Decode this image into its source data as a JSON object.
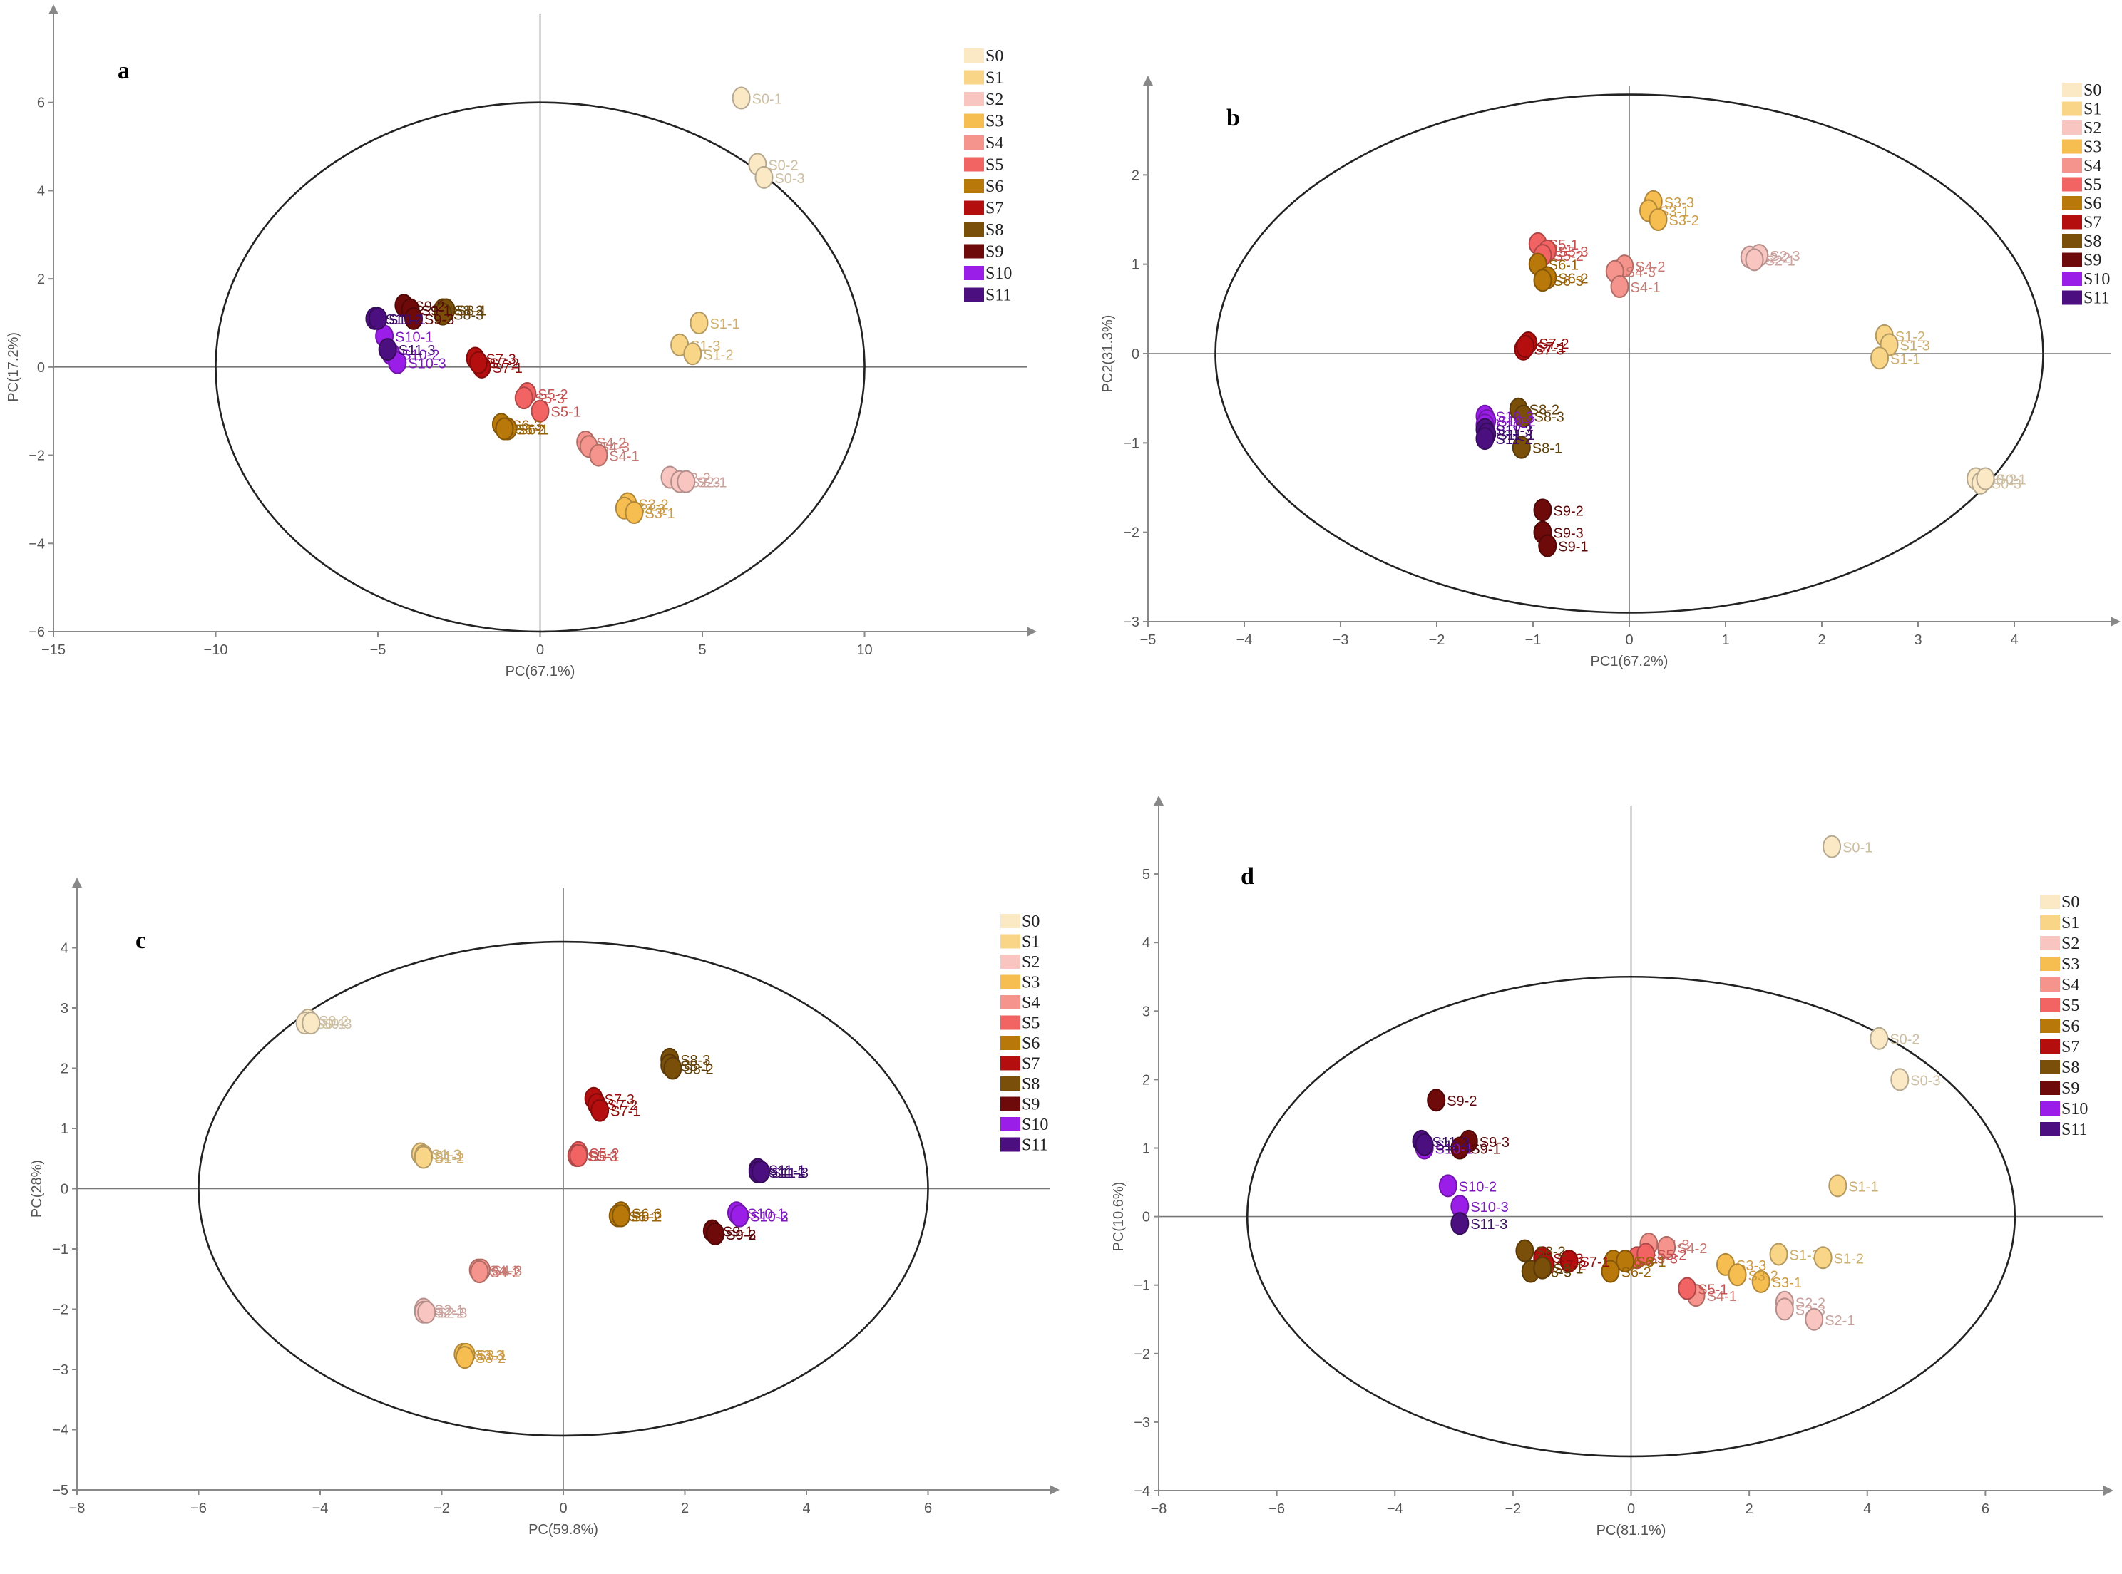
{
  "colors": {
    "S0": "#fbe9c6",
    "S1": "#f9d588",
    "S2": "#f8c5c0",
    "S3": "#f6bd50",
    "S4": "#f4948c",
    "S5": "#f26363",
    "S6": "#b8780a",
    "S7": "#b40e0e",
    "S8": "#7a4f0a",
    "S9": "#6e0a0a",
    "S10": "#9a1ee8",
    "S11": "#4c0f80"
  },
  "legend": [
    "S0",
    "S1",
    "S2",
    "S3",
    "S4",
    "S5",
    "S6",
    "S7",
    "S8",
    "S9",
    "S10",
    "S11"
  ],
  "chart_data": [
    {
      "type": "scatter",
      "panel": "a",
      "xlabel": "PC(67.1%)",
      "ylabel": "PC(17.2%)",
      "xlim": [
        -15,
        15
      ],
      "ylim": [
        -6,
        8
      ],
      "xticks": [
        -15,
        -10,
        -5,
        0,
        5,
        10
      ],
      "yticks": [
        -6,
        -4,
        -2,
        0,
        2,
        4,
        6
      ],
      "ellipse": {
        "cx": 0,
        "cy": 0,
        "rx": 10,
        "ry": 6
      },
      "points": [
        {
          "g": "S0",
          "label": "S0-1",
          "x": 6.2,
          "y": 6.1
        },
        {
          "g": "S0",
          "label": "S0-2",
          "x": 6.7,
          "y": 4.6
        },
        {
          "g": "S0",
          "label": "S0-3",
          "x": 6.9,
          "y": 4.3
        },
        {
          "g": "S1",
          "label": "S1-1",
          "x": 4.9,
          "y": 1.0
        },
        {
          "g": "S1",
          "label": "S1-3",
          "x": 4.3,
          "y": 0.5
        },
        {
          "g": "S1",
          "label": "S1-2",
          "x": 4.7,
          "y": 0.3
        },
        {
          "g": "S2",
          "label": "S2-2",
          "x": 4.0,
          "y": -2.5
        },
        {
          "g": "S2",
          "label": "S2-3",
          "x": 4.3,
          "y": -2.6
        },
        {
          "g": "S2",
          "label": "S2-1",
          "x": 4.5,
          "y": -2.6
        },
        {
          "g": "S3",
          "label": "S3-2",
          "x": 2.7,
          "y": -3.1
        },
        {
          "g": "S3",
          "label": "S3-3",
          "x": 2.6,
          "y": -3.2
        },
        {
          "g": "S3",
          "label": "S3-1",
          "x": 2.9,
          "y": -3.3
        },
        {
          "g": "S4",
          "label": "S4-2",
          "x": 1.4,
          "y": -1.7
        },
        {
          "g": "S4",
          "label": "S4-3",
          "x": 1.5,
          "y": -1.8
        },
        {
          "g": "S4",
          "label": "S4-1",
          "x": 1.8,
          "y": -2.0
        },
        {
          "g": "S5",
          "label": "S5-2",
          "x": -0.4,
          "y": -0.6
        },
        {
          "g": "S5",
          "label": "S5-3",
          "x": -0.5,
          "y": -0.7
        },
        {
          "g": "S5",
          "label": "S5-1",
          "x": 0.0,
          "y": -1.0
        },
        {
          "g": "S6",
          "label": "S6-3",
          "x": -1.2,
          "y": -1.3
        },
        {
          "g": "S6",
          "label": "S6-1",
          "x": -1.0,
          "y": -1.4
        },
        {
          "g": "S6",
          "label": "S6-2",
          "x": -1.1,
          "y": -1.4
        },
        {
          "g": "S7",
          "label": "S7-3",
          "x": -2.0,
          "y": 0.2
        },
        {
          "g": "S7",
          "label": "S7-1",
          "x": -1.8,
          "y": 0.0
        },
        {
          "g": "S7",
          "label": "S7-2",
          "x": -1.9,
          "y": 0.1
        },
        {
          "g": "S8",
          "label": "S8-2",
          "x": -3.0,
          "y": 1.3
        },
        {
          "g": "S8",
          "label": "S8-1",
          "x": -2.9,
          "y": 1.3
        },
        {
          "g": "S8",
          "label": "S8-3",
          "x": -3.0,
          "y": 1.2
        },
        {
          "g": "S9",
          "label": "S9-2",
          "x": -4.2,
          "y": 1.4
        },
        {
          "g": "S9",
          "label": "S9-1",
          "x": -4.0,
          "y": 1.3
        },
        {
          "g": "S9",
          "label": "S9-3",
          "x": -3.9,
          "y": 1.1
        },
        {
          "g": "S10",
          "label": "S10-1",
          "x": -4.8,
          "y": 0.7
        },
        {
          "g": "S10",
          "label": "S10-2",
          "x": -4.6,
          "y": 0.3
        },
        {
          "g": "S10",
          "label": "S10-3",
          "x": -4.4,
          "y": 0.1
        },
        {
          "g": "S11",
          "label": "S11-2",
          "x": -5.1,
          "y": 1.1
        },
        {
          "g": "S11",
          "label": "S11-1",
          "x": -5.0,
          "y": 1.1
        },
        {
          "g": "S11",
          "label": "S11-3",
          "x": -4.7,
          "y": 0.4
        }
      ]
    },
    {
      "type": "scatter",
      "panel": "b",
      "xlabel": "PC1(67.2%)",
      "ylabel": "PC2(31.3%)",
      "xlim": [
        -5,
        5
      ],
      "ylim": [
        -3,
        3
      ],
      "xticks": [
        -5,
        -4,
        -3,
        -2,
        -1,
        0,
        1,
        2,
        3,
        4
      ],
      "yticks": [
        -3,
        -2,
        -1,
        0,
        1,
        2
      ],
      "ellipse": {
        "cx": 0,
        "cy": 0,
        "rx": 4.3,
        "ry": 2.9
      },
      "points": [
        {
          "g": "S0",
          "label": "S0-2",
          "x": 3.6,
          "y": -1.4
        },
        {
          "g": "S0",
          "label": "S0-3",
          "x": 3.65,
          "y": -1.45
        },
        {
          "g": "S0",
          "label": "S0-1",
          "x": 3.7,
          "y": -1.4
        },
        {
          "g": "S1",
          "label": "S1-2",
          "x": 2.65,
          "y": 0.2
        },
        {
          "g": "S1",
          "label": "S1-3",
          "x": 2.7,
          "y": 0.1
        },
        {
          "g": "S1",
          "label": "S1-1",
          "x": 2.6,
          "y": -0.05
        },
        {
          "g": "S2",
          "label": "S2-2",
          "x": 1.25,
          "y": 1.08
        },
        {
          "g": "S2",
          "label": "S2-3",
          "x": 1.35,
          "y": 1.1
        },
        {
          "g": "S2",
          "label": "S2-1",
          "x": 1.3,
          "y": 1.05
        },
        {
          "g": "S3",
          "label": "S3-3",
          "x": 0.25,
          "y": 1.7
        },
        {
          "g": "S3",
          "label": "S3-1",
          "x": 0.2,
          "y": 1.6
        },
        {
          "g": "S3",
          "label": "S3-2",
          "x": 0.3,
          "y": 1.5
        },
        {
          "g": "S4",
          "label": "S4-2",
          "x": -0.05,
          "y": 0.98
        },
        {
          "g": "S4",
          "label": "S4-3",
          "x": -0.15,
          "y": 0.92
        },
        {
          "g": "S4",
          "label": "S4-1",
          "x": -0.1,
          "y": 0.75
        },
        {
          "g": "S5",
          "label": "S5-1",
          "x": -0.95,
          "y": 1.23
        },
        {
          "g": "S5",
          "label": "S5-3",
          "x": -0.85,
          "y": 1.15
        },
        {
          "g": "S5",
          "label": "S5-2",
          "x": -0.9,
          "y": 1.1
        },
        {
          "g": "S6",
          "label": "S6-1",
          "x": -0.95,
          "y": 1.0
        },
        {
          "g": "S6",
          "label": "S6-2",
          "x": -0.85,
          "y": 0.85
        },
        {
          "g": "S6",
          "label": "S6-3",
          "x": -0.9,
          "y": 0.82
        },
        {
          "g": "S7",
          "label": "S7-2",
          "x": -1.05,
          "y": 0.12
        },
        {
          "g": "S7",
          "label": "S7-3",
          "x": -1.1,
          "y": 0.05
        },
        {
          "g": "S7",
          "label": "S7-1",
          "x": -1.08,
          "y": 0.08
        },
        {
          "g": "S8",
          "label": "S8-2",
          "x": -1.15,
          "y": -0.62
        },
        {
          "g": "S8",
          "label": "S8-3",
          "x": -1.1,
          "y": -0.7
        },
        {
          "g": "S8",
          "label": "S8-1",
          "x": -1.12,
          "y": -1.05
        },
        {
          "g": "S9",
          "label": "S9-2",
          "x": -0.9,
          "y": -1.75
        },
        {
          "g": "S9",
          "label": "S9-3",
          "x": -0.9,
          "y": -2.0
        },
        {
          "g": "S9",
          "label": "S9-1",
          "x": -0.85,
          "y": -2.15
        },
        {
          "g": "S10",
          "label": "S10-3",
          "x": -1.5,
          "y": -0.7
        },
        {
          "g": "S10",
          "label": "S10-2",
          "x": -1.48,
          "y": -0.75
        },
        {
          "g": "S10",
          "label": "S10-1",
          "x": -1.5,
          "y": -0.8
        },
        {
          "g": "S11",
          "label": "S11-3",
          "x": -1.5,
          "y": -0.85
        },
        {
          "g": "S11",
          "label": "S11-1",
          "x": -1.48,
          "y": -0.9
        },
        {
          "g": "S11",
          "label": "S11-2",
          "x": -1.5,
          "y": -0.95
        }
      ]
    },
    {
      "type": "scatter",
      "panel": "c",
      "xlabel": "PC(59.8%)",
      "ylabel": "PC(28%)",
      "xlim": [
        -8,
        8
      ],
      "ylim": [
        -5,
        5
      ],
      "xticks": [
        -8,
        -6,
        -4,
        -2,
        0,
        2,
        4,
        6
      ],
      "yticks": [
        -5,
        -4,
        -3,
        -2,
        -1,
        0,
        1,
        2,
        3,
        4
      ],
      "ellipse": {
        "cx": 0,
        "cy": 0,
        "rx": 6,
        "ry": 4.1
      },
      "points": [
        {
          "g": "S0",
          "label": "S0-2",
          "x": -4.2,
          "y": 2.8
        },
        {
          "g": "S0",
          "label": "S0-1",
          "x": -4.25,
          "y": 2.75
        },
        {
          "g": "S0",
          "label": "S0-3",
          "x": -4.15,
          "y": 2.75
        },
        {
          "g": "S1",
          "label": "S1-3",
          "x": -2.35,
          "y": 0.58
        },
        {
          "g": "S1",
          "label": "S1-1",
          "x": -2.3,
          "y": 0.55
        },
        {
          "g": "S1",
          "label": "S1-2",
          "x": -2.3,
          "y": 0.52
        },
        {
          "g": "S2",
          "label": "S2-1",
          "x": -2.3,
          "y": -2.0
        },
        {
          "g": "S2",
          "label": "S2-2",
          "x": -2.3,
          "y": -2.05
        },
        {
          "g": "S2",
          "label": "S2-3",
          "x": -2.25,
          "y": -2.05
        },
        {
          "g": "S3",
          "label": "S3-3",
          "x": -1.65,
          "y": -2.75
        },
        {
          "g": "S3",
          "label": "S3-1",
          "x": -1.6,
          "y": -2.75
        },
        {
          "g": "S3",
          "label": "S3-2",
          "x": -1.62,
          "y": -2.8
        },
        {
          "g": "S4",
          "label": "S4-1",
          "x": -1.4,
          "y": -1.35
        },
        {
          "g": "S4",
          "label": "S4-3",
          "x": -1.35,
          "y": -1.35
        },
        {
          "g": "S4",
          "label": "S4-2",
          "x": -1.38,
          "y": -1.38
        },
        {
          "g": "S5",
          "label": "S5-2",
          "x": 0.25,
          "y": 0.6
        },
        {
          "g": "S5",
          "label": "S5-3",
          "x": 0.22,
          "y": 0.55
        },
        {
          "g": "S5",
          "label": "S5-1",
          "x": 0.25,
          "y": 0.55
        },
        {
          "g": "S6",
          "label": "S6-3",
          "x": 0.95,
          "y": -0.4
        },
        {
          "g": "S6",
          "label": "S6-1",
          "x": 0.9,
          "y": -0.45
        },
        {
          "g": "S6",
          "label": "S6-2",
          "x": 0.95,
          "y": -0.45
        },
        {
          "g": "S7",
          "label": "S7-3",
          "x": 0.5,
          "y": 1.5
        },
        {
          "g": "S7",
          "label": "S7-2",
          "x": 0.55,
          "y": 1.4
        },
        {
          "g": "S7",
          "label": "S7-1",
          "x": 0.6,
          "y": 1.3
        },
        {
          "g": "S8",
          "label": "S8-3",
          "x": 1.75,
          "y": 2.15
        },
        {
          "g": "S8",
          "label": "S8-1",
          "x": 1.75,
          "y": 2.05
        },
        {
          "g": "S8",
          "label": "S8-2",
          "x": 1.8,
          "y": 2.0
        },
        {
          "g": "S9",
          "label": "S9-1",
          "x": 2.45,
          "y": -0.7
        },
        {
          "g": "S9",
          "label": "S9-3",
          "x": 2.5,
          "y": -0.75
        },
        {
          "g": "S9",
          "label": "S9-2",
          "x": 2.5,
          "y": -0.75
        },
        {
          "g": "S10",
          "label": "S10-1",
          "x": 2.85,
          "y": -0.4
        },
        {
          "g": "S10",
          "label": "S10-2",
          "x": 2.9,
          "y": -0.45
        },
        {
          "g": "S10",
          "label": "S10-3",
          "x": 2.9,
          "y": -0.45
        },
        {
          "g": "S11",
          "label": "S11-1",
          "x": 3.2,
          "y": 0.32
        },
        {
          "g": "S11",
          "label": "S11-2",
          "x": 3.2,
          "y": 0.28
        },
        {
          "g": "S11",
          "label": "S11-3",
          "x": 3.25,
          "y": 0.28
        }
      ]
    },
    {
      "type": "scatter",
      "panel": "d",
      "xlabel": "PC(81.1%)",
      "ylabel": "PC(10.6%)",
      "xlim": [
        -8,
        8
      ],
      "ylim": [
        -4,
        6
      ],
      "xticks": [
        -8,
        -6,
        -4,
        -2,
        0,
        2,
        4,
        6
      ],
      "yticks": [
        -4,
        -3,
        -2,
        -1,
        0,
        1,
        2,
        3,
        4,
        5
      ],
      "ellipse": {
        "cx": 0,
        "cy": 0,
        "rx": 6.5,
        "ry": 3.5
      },
      "points": [
        {
          "g": "S0",
          "label": "S0-1",
          "x": 3.4,
          "y": 5.4
        },
        {
          "g": "S0",
          "label": "S0-2",
          "x": 4.2,
          "y": 2.6
        },
        {
          "g": "S0",
          "label": "S0-3",
          "x": 4.55,
          "y": 2.0
        },
        {
          "g": "S1",
          "label": "S1-1",
          "x": 3.5,
          "y": 0.45
        },
        {
          "g": "S1",
          "label": "S1-3",
          "x": 2.5,
          "y": -0.55
        },
        {
          "g": "S1",
          "label": "S1-2",
          "x": 3.25,
          "y": -0.6
        },
        {
          "g": "S2",
          "label": "S2-2",
          "x": 2.6,
          "y": -1.25
        },
        {
          "g": "S2",
          "label": "S2-3",
          "x": 2.6,
          "y": -1.35
        },
        {
          "g": "S2",
          "label": "S2-1",
          "x": 3.1,
          "y": -1.5
        },
        {
          "g": "S3",
          "label": "S3-3",
          "x": 1.6,
          "y": -0.7
        },
        {
          "g": "S3",
          "label": "S3-1",
          "x": 2.2,
          "y": -0.95
        },
        {
          "g": "S3",
          "label": "S3-2",
          "x": 1.8,
          "y": -0.85
        },
        {
          "g": "S4",
          "label": "S4-3",
          "x": 0.3,
          "y": -0.4
        },
        {
          "g": "S4",
          "label": "S4-2",
          "x": 0.6,
          "y": -0.45
        },
        {
          "g": "S4",
          "label": "S4-1",
          "x": 1.1,
          "y": -1.15
        },
        {
          "g": "S5",
          "label": "S5-3",
          "x": 0.1,
          "y": -0.6
        },
        {
          "g": "S5",
          "label": "S5-2",
          "x": 0.25,
          "y": -0.55
        },
        {
          "g": "S5",
          "label": "S5-1",
          "x": 0.95,
          "y": -1.05
        },
        {
          "g": "S6",
          "label": "S6-3",
          "x": -0.3,
          "y": -0.65
        },
        {
          "g": "S6",
          "label": "S6-1",
          "x": -0.1,
          "y": -0.65
        },
        {
          "g": "S6",
          "label": "S6-2",
          "x": -0.35,
          "y": -0.8
        },
        {
          "g": "S7",
          "label": "S7-3",
          "x": -1.5,
          "y": -0.6
        },
        {
          "g": "S7",
          "label": "S7-1",
          "x": -1.05,
          "y": -0.65
        },
        {
          "g": "S7",
          "label": "S7-2",
          "x": -1.45,
          "y": -0.7
        },
        {
          "g": "S8",
          "label": "S8-2",
          "x": -1.8,
          "y": -0.5
        },
        {
          "g": "S8",
          "label": "S8-3",
          "x": -1.7,
          "y": -0.8
        },
        {
          "g": "S8",
          "label": "S8-1",
          "x": -1.5,
          "y": -0.75
        },
        {
          "g": "S9",
          "label": "S9-2",
          "x": -3.3,
          "y": 1.7
        },
        {
          "g": "S9",
          "label": "S9-3",
          "x": -2.75,
          "y": 1.1
        },
        {
          "g": "S9",
          "label": "S9-1",
          "x": -2.9,
          "y": 1.0
        },
        {
          "g": "S10",
          "label": "S10-1",
          "x": -3.5,
          "y": 1.0
        },
        {
          "g": "S10",
          "label": "S10-2",
          "x": -3.1,
          "y": 0.45
        },
        {
          "g": "S10",
          "label": "S10-3",
          "x": -2.9,
          "y": 0.15
        },
        {
          "g": "S11",
          "label": "S11-2",
          "x": -3.55,
          "y": 1.1
        },
        {
          "g": "S11",
          "label": "S11-1",
          "x": -3.5,
          "y": 1.05
        },
        {
          "g": "S11",
          "label": "S11-3",
          "x": -2.9,
          "y": -0.1
        }
      ]
    }
  ]
}
